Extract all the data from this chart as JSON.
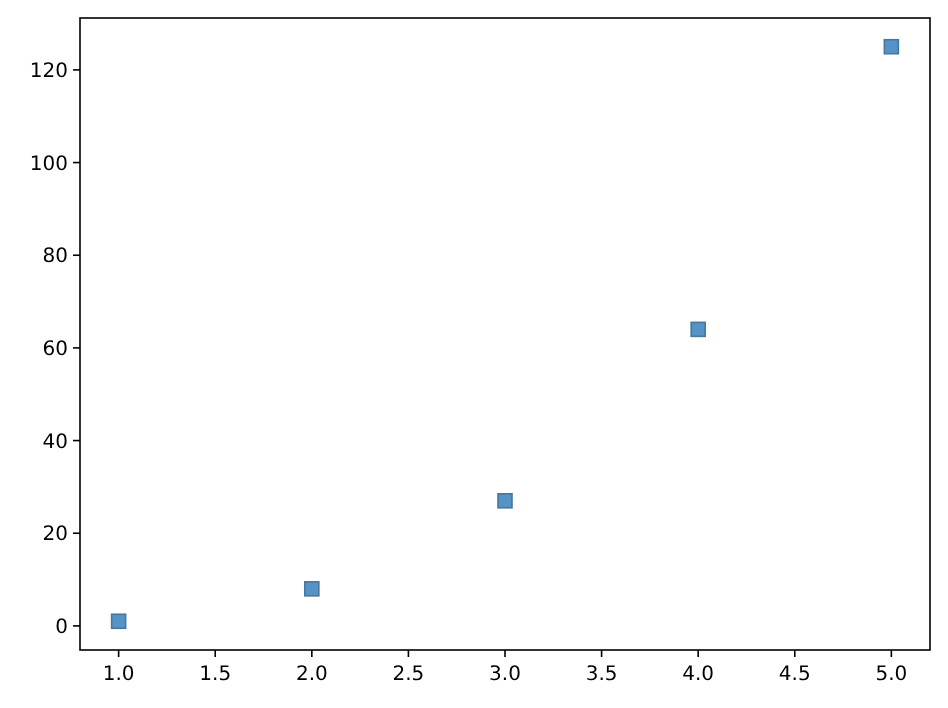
{
  "chart_data": {
    "type": "scatter",
    "x": [
      1,
      2,
      3,
      4,
      5
    ],
    "series": [
      {
        "color": "#5593c6",
        "values": [
          1,
          8,
          27,
          64,
          125
        ]
      }
    ],
    "xlim": [
      0.8,
      5.2
    ],
    "xticks": [
      {
        "value": 1,
        "label": "1.0"
      },
      {
        "value": 1.5,
        "label": "1.5"
      },
      {
        "value": 2,
        "label": "2.0"
      },
      {
        "value": 2.5,
        "label": "2.5"
      },
      {
        "value": 3,
        "label": "3.0"
      },
      {
        "value": 3.5,
        "label": "3.5"
      },
      {
        "value": 4,
        "label": "4.0"
      },
      {
        "value": 4.5,
        "label": "4.5"
      },
      {
        "value": 5,
        "label": "5.0"
      }
    ],
    "ylim": [
      -5.2,
      131.2
    ],
    "yticks": [
      0,
      20,
      40,
      60,
      80,
      100,
      120
    ],
    "marker": "square"
  }
}
